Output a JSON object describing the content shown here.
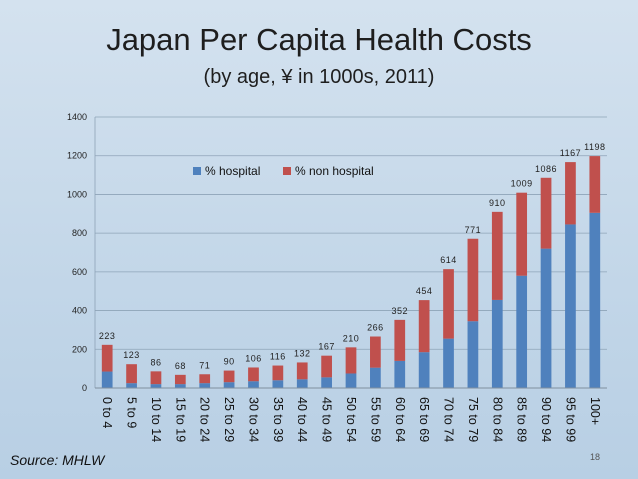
{
  "title": "Japan Per Capita Health Costs",
  "subtitle": "(by age,  ¥ in 1000s, 2011)",
  "source": "Source: MHLW",
  "slide_number": "18",
  "colors": {
    "hospital": "#4f81bd",
    "non_hospital": "#c0504d",
    "grid": "#8ea3b7"
  },
  "chart_data": {
    "type": "bar",
    "stacked": true,
    "title": "Japan Per Capita Health Costs",
    "subtitle": "(by age,  ¥ in 1000s, 2011)",
    "xlabel": "",
    "ylabel": "",
    "ylim": [
      0,
      1400
    ],
    "yticks": [
      0,
      200,
      400,
      600,
      800,
      1000,
      1200,
      1400
    ],
    "grid": true,
    "legend_position": "top-center",
    "categories": [
      "0 to 4",
      "5 to 9",
      "10 to 14",
      "15 to 19",
      "20 to 24",
      "25 to 29",
      "30 to 34",
      "35 to 39",
      "40 to 44",
      "45 to 49",
      "50 to 54",
      "55 to 59",
      "60 to 64",
      "65 to 69",
      "70 to 74",
      "75 to 79",
      "80 to 84",
      "85 to 89",
      "90 to 94",
      "95 to 99",
      "100+"
    ],
    "totals": [
      223,
      123,
      86,
      68,
      71,
      90,
      106,
      116,
      132,
      167,
      210,
      266,
      352,
      454,
      614,
      771,
      910,
      1009,
      1086,
      1167,
      1198
    ],
    "series": [
      {
        "name": "% hospital",
        "values": [
          85,
          25,
          20,
          20,
          25,
          30,
          35,
          40,
          45,
          55,
          75,
          105,
          140,
          185,
          255,
          345,
          455,
          580,
          720,
          845,
          905
        ]
      },
      {
        "name": "% non hospital",
        "values": [
          138,
          98,
          66,
          48,
          46,
          60,
          71,
          76,
          87,
          112,
          135,
          161,
          212,
          269,
          359,
          426,
          455,
          429,
          366,
          322,
          293
        ]
      }
    ]
  }
}
